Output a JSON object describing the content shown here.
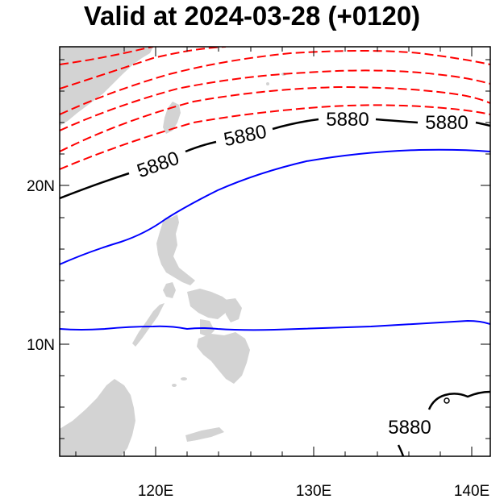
{
  "title": "Valid at 2024-03-28 (+0120)",
  "axes": {
    "x_ticks": [
      "120E",
      "130E",
      "140E"
    ],
    "y_ticks": [
      "20N",
      "10N"
    ]
  },
  "contour_labels": [
    "5880",
    "5880",
    "5880",
    "5880",
    "5880"
  ],
  "colors": {
    "land": "#d3d3d3",
    "contour_5880": "#000000",
    "blue_contour": "#0000ff",
    "red_dashed": "#ff0000",
    "frame": "#000000"
  }
}
